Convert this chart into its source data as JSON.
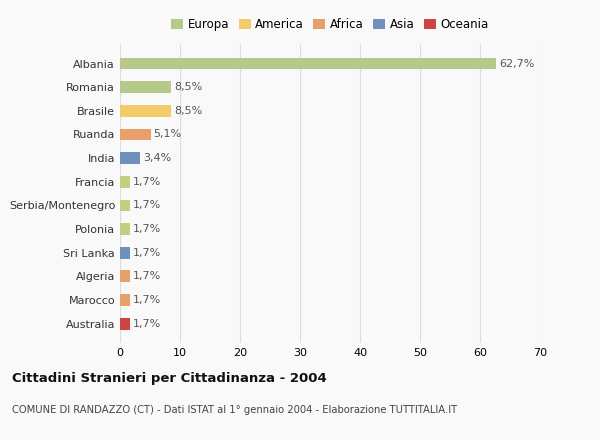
{
  "categories": [
    "Albania",
    "Romania",
    "Brasile",
    "Ruanda",
    "India",
    "Francia",
    "Serbia/Montenegro",
    "Polonia",
    "Sri Lanka",
    "Algeria",
    "Marocco",
    "Australia"
  ],
  "values": [
    62.7,
    8.5,
    8.5,
    5.1,
    3.4,
    1.7,
    1.7,
    1.7,
    1.7,
    1.7,
    1.7,
    1.7
  ],
  "labels": [
    "62,7%",
    "8,5%",
    "8,5%",
    "5,1%",
    "3,4%",
    "1,7%",
    "1,7%",
    "1,7%",
    "1,7%",
    "1,7%",
    "1,7%",
    "1,7%"
  ],
  "bar_colors": [
    "#b5c98a",
    "#b5c98a",
    "#f2cb6b",
    "#e8a06a",
    "#7090be",
    "#c0d080",
    "#c0d080",
    "#c0d080",
    "#7090be",
    "#e8a06a",
    "#e8a06a",
    "#cc4444"
  ],
  "legend_labels": [
    "Europa",
    "America",
    "Africa",
    "Asia",
    "Oceania"
  ],
  "legend_colors": [
    "#b5c98a",
    "#f2cb6b",
    "#e8a06a",
    "#7090be",
    "#cc4444"
  ],
  "title": "Cittadini Stranieri per Cittadinanza - 2004",
  "subtitle": "COMUNE DI RANDAZZO (CT) - Dati ISTAT al 1° gennaio 2004 - Elaborazione TUTTITALIA.IT",
  "xlim": [
    0,
    70
  ],
  "xticks": [
    0,
    10,
    20,
    30,
    40,
    50,
    60,
    70
  ],
  "background_color": "#f9f9f9",
  "grid_color": "#dddddd"
}
